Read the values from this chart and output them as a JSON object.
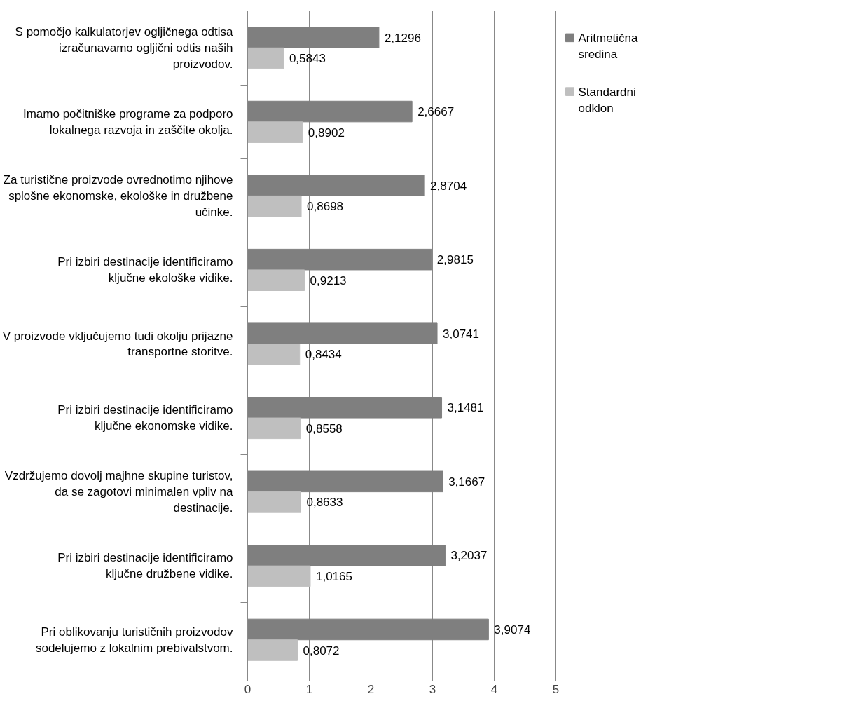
{
  "chart_data": {
    "type": "bar",
    "orientation": "horizontal",
    "categories": [
      "S pomočjo kalkulatorjev ogljičnega odtisa izračunavamo ogljični odtis naših proizvodov.",
      "Imamo počitniške programe za podporo lokalnega razvoja in zaščite okolja.",
      "Za turistične proizvode ovrednotimo njihove splošne ekonomske, ekološke in družbene učinke.",
      "Pri izbiri destinacije identificiramo ključne ekološke vidike.",
      "V proizvode vključujemo tudi okolju prijazne transportne storitve.",
      "Pri izbiri destinacije identificiramo ključne ekonomske vidike.",
      "Vzdržujemo dovolj majhne skupine turistov, da se zagotovi minimalen vpliv na destinacije.",
      "Pri izbiri destinacije identificiramo ključne družbene vidike.",
      "Pri oblikovanju turističnih proizvodov sodelujemo z lokalnim prebivalstvom."
    ],
    "series": [
      {
        "name": "Aritmetična sredina",
        "color": "#7f7f7f",
        "values": [
          2.1296,
          2.6667,
          2.8704,
          2.9815,
          3.0741,
          3.1481,
          3.1667,
          3.2037,
          3.9074
        ],
        "value_labels": [
          "2,1296",
          "2,6667",
          "2,8704",
          "2,9815",
          "3,0741",
          "3,1481",
          "3,1667",
          "3,2037",
          "3,9074"
        ]
      },
      {
        "name": "Standardni odklon",
        "color": "#bfbfbf",
        "values": [
          0.5843,
          0.8902,
          0.8698,
          0.9213,
          0.8434,
          0.8558,
          0.8633,
          1.0165,
          0.8072
        ],
        "value_labels": [
          "0,5843",
          "0,8902",
          "0,8698",
          "0,9213",
          "0,8434",
          "0,8558",
          "0,8633",
          "1,0165",
          "0,8072"
        ]
      }
    ],
    "xlim": [
      0,
      5
    ],
    "xticks": [
      0,
      1,
      2,
      3,
      4,
      5
    ],
    "grid": "x",
    "legend": "right"
  }
}
